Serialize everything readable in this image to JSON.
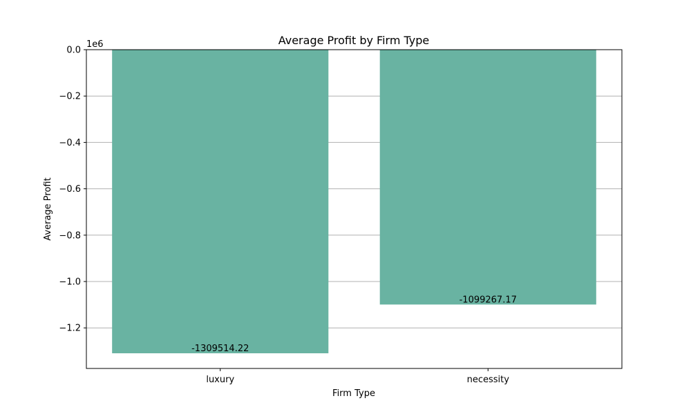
{
  "chart_data": {
    "type": "bar",
    "title": "Average Profit by Firm Type",
    "xlabel": "Firm Type",
    "ylabel": "Average Profit",
    "y_scale_label": "1e6",
    "categories": [
      "luxury",
      "necessity"
    ],
    "values": [
      -1309514.22,
      -1099267.17
    ],
    "data_labels": [
      "-1309514.22",
      "-1099267.17"
    ],
    "ylim": [
      -1.375,
      0.0
    ],
    "y_unit_multiplier": 1000000,
    "yticks": [
      0.0,
      -0.2,
      -0.4,
      -0.6,
      -0.8,
      -1.0,
      -1.2
    ],
    "ytick_labels": [
      "0.0",
      "−0.2",
      "−0.4",
      "−0.6",
      "−0.8",
      "−1.0",
      "−1.2"
    ],
    "grid": "y",
    "bar_color": "#69b3a2"
  }
}
